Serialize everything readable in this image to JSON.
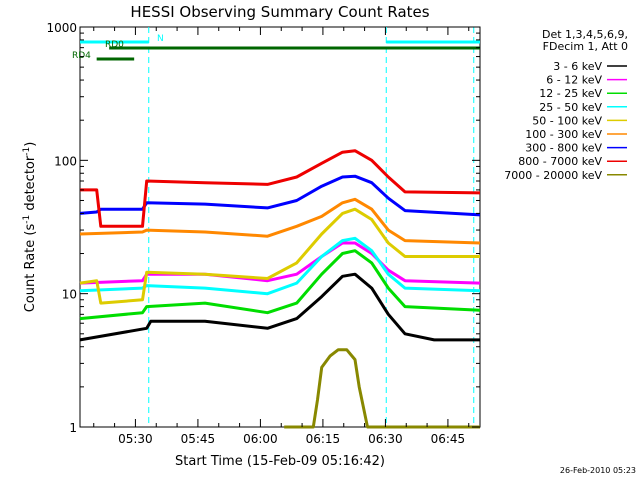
{
  "chart_data": {
    "type": "line",
    "title": "HESSI Observing Summary Count Rates",
    "xlabel": "Start Time (15-Feb-09 05:16:42)",
    "ylabel_main": "Count Rate (s",
    "ylabel_sup1": "-1",
    "ylabel_mid": " detector",
    "ylabel_sup2": "-1",
    "ylabel_end": ")",
    "yscale": "log",
    "ylim": [
      1,
      1000
    ],
    "x_unit": "minutes since 05:16:42",
    "xlim": [
      0,
      96
    ],
    "x_ticks": [
      {
        "x": 13.3,
        "label": "05:30"
      },
      {
        "x": 28.3,
        "label": "05:45"
      },
      {
        "x": 43.3,
        "label": "06:00"
      },
      {
        "x": 58.3,
        "label": "06:15"
      },
      {
        "x": 73.3,
        "label": "06:30"
      },
      {
        "x": 88.3,
        "label": "06:45"
      }
    ],
    "y_ticks": [
      {
        "y": 1,
        "label": "1"
      },
      {
        "y": 10,
        "label": "10"
      },
      {
        "y": 100,
        "label": "100"
      },
      {
        "y": 1000,
        "label": "1000"
      }
    ],
    "legend_title": [
      "Det 1,3,4,5,6,9,",
      "FDecim 1, Att 0"
    ],
    "legend_position": "right",
    "series": [
      {
        "name": "3 - 6 keV",
        "color": "#000000",
        "values": [
          [
            0,
            4.5
          ],
          [
            16,
            5.5
          ],
          [
            17,
            6.2
          ],
          [
            30,
            6.2
          ],
          [
            45,
            5.5
          ],
          [
            52,
            6.5
          ],
          [
            58,
            9.5
          ],
          [
            63,
            13.5
          ],
          [
            66,
            14
          ],
          [
            70,
            11
          ],
          [
            74,
            7
          ],
          [
            78,
            5
          ],
          [
            85,
            4.5
          ],
          [
            96,
            4.5
          ]
        ]
      },
      {
        "name": "6 - 12 keV",
        "color": "#ff00ff",
        "values": [
          [
            0,
            12
          ],
          [
            15,
            12.5
          ],
          [
            16,
            14
          ],
          [
            30,
            14
          ],
          [
            45,
            12.5
          ],
          [
            52,
            14
          ],
          [
            58,
            19
          ],
          [
            63,
            24
          ],
          [
            66,
            24
          ],
          [
            70,
            20
          ],
          [
            74,
            15
          ],
          [
            78,
            12.5
          ],
          [
            96,
            12
          ]
        ]
      },
      {
        "name": "12 - 25 keV",
        "color": "#00dd00",
        "values": [
          [
            0,
            6.5
          ],
          [
            15,
            7.2
          ],
          [
            16,
            8
          ],
          [
            30,
            8.5
          ],
          [
            45,
            7.2
          ],
          [
            52,
            8.5
          ],
          [
            58,
            14
          ],
          [
            63,
            20
          ],
          [
            66,
            21
          ],
          [
            70,
            17
          ],
          [
            74,
            11
          ],
          [
            78,
            8
          ],
          [
            96,
            7.5
          ]
        ]
      },
      {
        "name": "25 - 50 keV",
        "color": "#00ffff",
        "values": [
          [
            0,
            10.5
          ],
          [
            15,
            11
          ],
          [
            16,
            11.5
          ],
          [
            30,
            11
          ],
          [
            45,
            10
          ],
          [
            52,
            12
          ],
          [
            58,
            19
          ],
          [
            63,
            25
          ],
          [
            66,
            26
          ],
          [
            70,
            21
          ],
          [
            74,
            14
          ],
          [
            78,
            11
          ],
          [
            96,
            10.5
          ]
        ]
      },
      {
        "name": "50 - 100 keV",
        "color": "#ddcc00",
        "values": [
          [
            0,
            12
          ],
          [
            4,
            12.5
          ],
          [
            5,
            8.5
          ],
          [
            15,
            9
          ],
          [
            16,
            14.5
          ],
          [
            30,
            14
          ],
          [
            45,
            13
          ],
          [
            52,
            17
          ],
          [
            58,
            28
          ],
          [
            63,
            40
          ],
          [
            66,
            43
          ],
          [
            70,
            36
          ],
          [
            74,
            24
          ],
          [
            78,
            19
          ],
          [
            96,
            19
          ]
        ]
      },
      {
        "name": "100 - 300 keV",
        "color": "#ff8800",
        "values": [
          [
            0,
            28
          ],
          [
            15,
            29
          ],
          [
            16,
            30
          ],
          [
            30,
            29
          ],
          [
            45,
            27
          ],
          [
            52,
            32
          ],
          [
            58,
            38
          ],
          [
            63,
            48
          ],
          [
            66,
            51
          ],
          [
            70,
            43
          ],
          [
            74,
            30
          ],
          [
            78,
            25
          ],
          [
            96,
            24
          ]
        ]
      },
      {
        "name": "300 - 800 keV",
        "color": "#0000ff",
        "values": [
          [
            0,
            40
          ],
          [
            4,
            41
          ],
          [
            5,
            43
          ],
          [
            15,
            43
          ],
          [
            16,
            48
          ],
          [
            30,
            47
          ],
          [
            45,
            44
          ],
          [
            52,
            50
          ],
          [
            58,
            64
          ],
          [
            63,
            75
          ],
          [
            66,
            76
          ],
          [
            70,
            68
          ],
          [
            74,
            52
          ],
          [
            78,
            42
          ],
          [
            96,
            39
          ]
        ]
      },
      {
        "name": "800 - 7000 keV",
        "color": "#ee0000",
        "values": [
          [
            0,
            60
          ],
          [
            4,
            60
          ],
          [
            5,
            32
          ],
          [
            15,
            32
          ],
          [
            16,
            70
          ],
          [
            30,
            68
          ],
          [
            45,
            66
          ],
          [
            52,
            75
          ],
          [
            58,
            95
          ],
          [
            63,
            115
          ],
          [
            66,
            118
          ],
          [
            70,
            100
          ],
          [
            74,
            75
          ],
          [
            78,
            58
          ],
          [
            96,
            57
          ]
        ]
      },
      {
        "name": "7000 - 20000 keV",
        "color": "#888800",
        "values": [
          [
            49,
            1
          ],
          [
            56,
            1
          ],
          [
            57,
            1.6
          ],
          [
            58,
            2.8
          ],
          [
            60,
            3.4
          ],
          [
            62,
            3.8
          ],
          [
            64,
            3.8
          ],
          [
            66,
            3.2
          ],
          [
            67,
            2
          ],
          [
            69,
            1
          ],
          [
            96,
            1
          ]
        ]
      }
    ],
    "flag_bars": [
      {
        "name": "N",
        "color": "#00ffff",
        "segments": [
          [
            0,
            16.5
          ],
          [
            73.5,
            96
          ]
        ]
      },
      {
        "name": "RD0",
        "color": "#006600",
        "segments": [
          [
            7,
            96
          ]
        ]
      },
      {
        "name": "RD4",
        "color": "#006600",
        "segments": [
          [
            4,
            13
          ]
        ]
      }
    ],
    "vlines": [
      16.5,
      73.5,
      94.5
    ],
    "timestamp": "26-Feb-2010 05:23"
  }
}
